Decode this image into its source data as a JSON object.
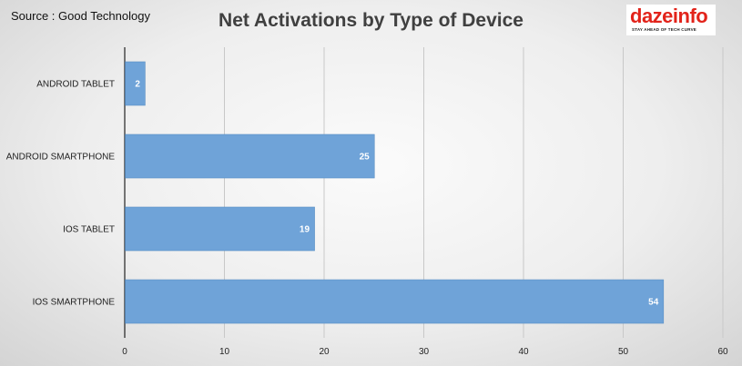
{
  "source_note": "Source : Good Technology",
  "logo": {
    "wordmark": "dazeinfo",
    "tagline": "STAY AHEAD OF TECH CURVE"
  },
  "colors": {
    "bar": "#6fa3d8",
    "bar_border": "#5b8fc4",
    "grid": "#c8c8c8",
    "axis": "#222222",
    "brand": "#e2231a"
  },
  "chart_data": {
    "type": "bar",
    "orientation": "horizontal",
    "title": "Net Activations by Type of Device",
    "xlabel": "",
    "ylabel": "",
    "categories": [
      "ANDROID  TABLET",
      "ANDROID SMARTPHONE",
      "IOS TABLET",
      "IOS SMARTPHONE"
    ],
    "values": [
      2,
      25,
      19,
      54
    ],
    "xlim": [
      0,
      60
    ],
    "xticks": [
      0,
      10,
      20,
      30,
      40,
      50,
      60
    ],
    "grid": true,
    "data_labels": true,
    "legend": "none"
  }
}
